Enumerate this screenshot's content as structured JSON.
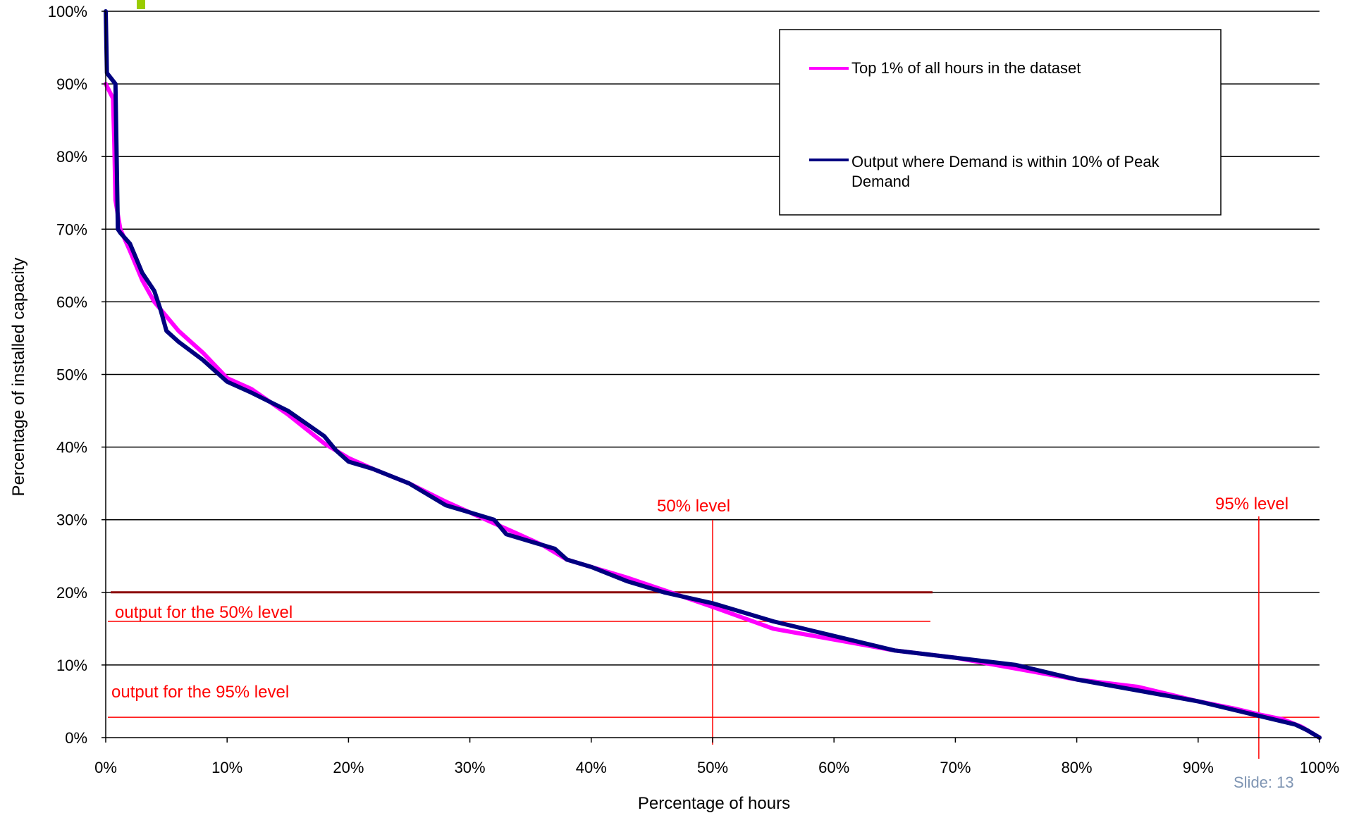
{
  "slide_label": "Slide: 13",
  "colors": {
    "pink": "#ff00ff",
    "navy": "#000080",
    "annotation": "#ff0000",
    "accent": "#99cc00",
    "slide": "#7f95b3",
    "dark_red": "#8b0000"
  },
  "chart_data": {
    "type": "line",
    "title": "",
    "xlabel": "Percentage of hours",
    "ylabel": "Percentage of installed capacity",
    "xlim": [
      0,
      100
    ],
    "ylim": [
      0,
      100
    ],
    "x_ticks": [
      0,
      10,
      20,
      30,
      40,
      50,
      60,
      70,
      80,
      90,
      100
    ],
    "y_ticks": [
      0,
      10,
      20,
      30,
      40,
      50,
      60,
      70,
      80,
      90,
      100
    ],
    "x_tick_labels": [
      "0%",
      "10%",
      "20%",
      "30%",
      "40%",
      "50%",
      "60%",
      "70%",
      "80%",
      "90%",
      "100%"
    ],
    "y_tick_labels": [
      "0%",
      "10%",
      "20%",
      "30%",
      "40%",
      "50%",
      "60%",
      "70%",
      "80%",
      "90%",
      "100%"
    ],
    "grid": "horizontal",
    "legend_position": "top-right",
    "series": [
      {
        "name": "Top 1% of all hours in the dataset",
        "color": "#ff00ff",
        "x": [
          0,
          0.6,
          0.7,
          0.8,
          1.0,
          1.2,
          2.0,
          3.0,
          4.0,
          5.0,
          6.0,
          8.0,
          10.0,
          12.0,
          15.0,
          18.0,
          20.0,
          22.0,
          25.0,
          28.0,
          30.0,
          32.0,
          34.0,
          36.0,
          38.0,
          40.0,
          43.0,
          46.0,
          50.0,
          55.0,
          60.0,
          65.0,
          70.0,
          75.0,
          80.0,
          85.0,
          90.0,
          93.0,
          95.0,
          97.0,
          98.5,
          100.0
        ],
        "y": [
          90,
          88,
          82,
          74,
          72,
          70,
          67,
          63,
          60,
          58,
          56,
          53,
          49.5,
          48,
          44.5,
          40.5,
          38.5,
          37,
          35,
          32.5,
          31,
          29.5,
          28,
          26.5,
          24.5,
          23.5,
          22,
          20.3,
          18,
          15,
          13.5,
          12,
          11,
          9.5,
          8,
          7,
          5,
          4,
          3.2,
          2.5,
          1.5,
          0
        ]
      },
      {
        "name": "Output where Demand is within 10% of Peak Demand",
        "color": "#000080",
        "x": [
          0,
          0.1,
          0.8,
          0.9,
          1.0,
          1.2,
          2.0,
          2.5,
          3.0,
          4.0,
          4.5,
          5.0,
          6.0,
          8.0,
          10.0,
          12.0,
          15.0,
          18.0,
          19.0,
          20.0,
          22.0,
          25.0,
          28.0,
          30.0,
          32.0,
          33.0,
          35.0,
          37.0,
          38.0,
          40.0,
          43.0,
          46.0,
          50.0,
          55.0,
          60.0,
          65.0,
          70.0,
          75.0,
          80.0,
          85.0,
          90.0,
          95.0,
          98.0,
          99.0,
          100.0
        ],
        "y": [
          100,
          91.5,
          90,
          80,
          70,
          69.5,
          68,
          66,
          64,
          61.5,
          59,
          56,
          54.5,
          52,
          49,
          47.5,
          45,
          41.5,
          39.5,
          38,
          37,
          35,
          32,
          31,
          30,
          28,
          27,
          26,
          24.5,
          23.5,
          21.5,
          20,
          18.5,
          16,
          14,
          12,
          11,
          10,
          8,
          6.5,
          5,
          3,
          1.8,
          1,
          0
        ]
      }
    ],
    "annotations": [
      {
        "text": "50% level",
        "x": 50
      },
      {
        "text": "95% level",
        "x": 95
      },
      {
        "text": "output for the 50% level",
        "y": 16
      },
      {
        "text": "output for the 95% level",
        "y": 2.8
      }
    ],
    "reference_lines": {
      "level_50_x": 50,
      "level_95_x": 95,
      "output_50_y": 16,
      "output_95_y": 2.8,
      "dark_red_y": 20
    }
  }
}
